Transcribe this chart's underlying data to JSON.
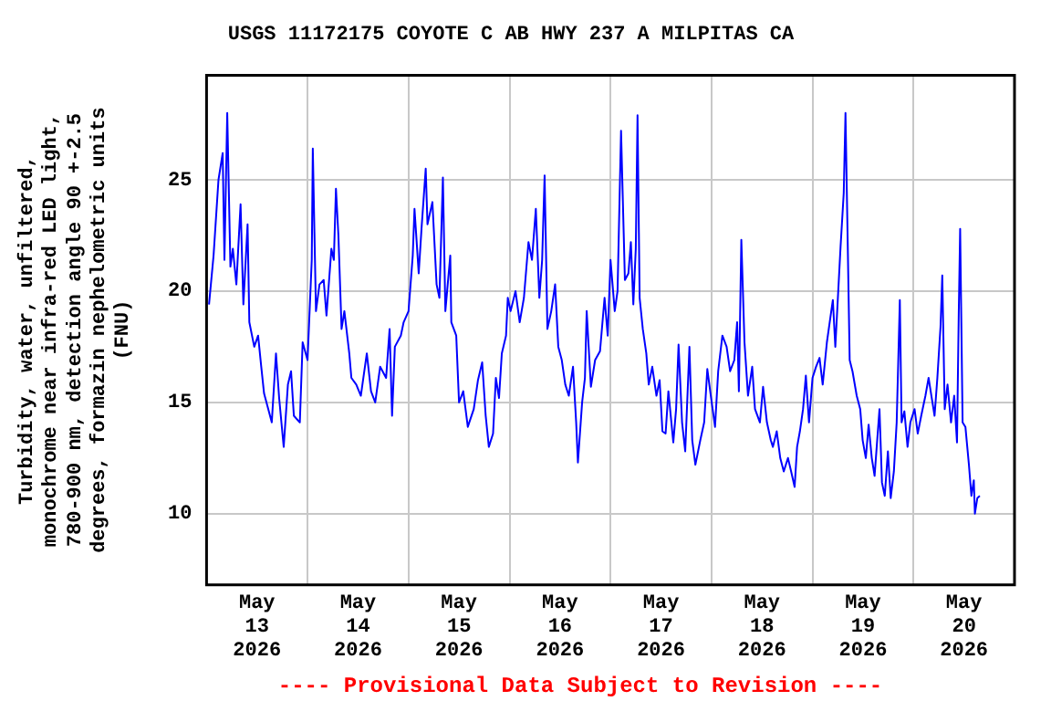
{
  "chart_data": {
    "type": "line",
    "title": "USGS 11172175 COYOTE C AB HWY 237 A MILPITAS CA",
    "ylabel": "Turbidity, water, unfiltered, monochrome near infra-red LED light, 780-900 nm, detection angle 90 +-2.5 degrees, formazin nephelometric units (FNU)",
    "annotations": [
      "---- Provisional Data Subject to Revision ----"
    ],
    "x": [
      "2026-05-13T00:35",
      "2026-05-13T01:40",
      "2026-05-13T02:50",
      "2026-05-13T03:50",
      "2026-05-13T04:15",
      "2026-05-13T04:55",
      "2026-05-13T05:40",
      "2026-05-13T06:15",
      "2026-05-13T07:05",
      "2026-05-13T08:05",
      "2026-05-13T08:45",
      "2026-05-13T09:45",
      "2026-05-13T10:10",
      "2026-05-13T11:20",
      "2026-05-13T12:15",
      "2026-05-13T13:00",
      "2026-05-13T13:40",
      "2026-05-13T14:40",
      "2026-05-13T15:30",
      "2026-05-13T16:30",
      "2026-05-13T17:15",
      "2026-05-13T18:20",
      "2026-05-13T19:20",
      "2026-05-13T20:05",
      "2026-05-13T20:45",
      "2026-05-13T22:10",
      "2026-05-13T22:50",
      "2026-05-14T00:00",
      "2026-05-14T01:00",
      "2026-05-14T01:15",
      "2026-05-14T02:00",
      "2026-05-14T02:50",
      "2026-05-14T03:50",
      "2026-05-14T04:30",
      "2026-05-14T05:40",
      "2026-05-14T06:15",
      "2026-05-14T06:45",
      "2026-05-14T07:20",
      "2026-05-14T08:05",
      "2026-05-14T08:45",
      "2026-05-14T09:55",
      "2026-05-14T10:25",
      "2026-05-14T11:35",
      "2026-05-14T12:40",
      "2026-05-14T14:05",
      "2026-05-14T15:05",
      "2026-05-14T16:05",
      "2026-05-14T17:15",
      "2026-05-14T18:40",
      "2026-05-14T19:30",
      "2026-05-14T20:05",
      "2026-05-14T20:45",
      "2026-05-14T22:10",
      "2026-05-14T22:50",
      "2026-05-15T00:00",
      "2026-05-15T01:00",
      "2026-05-15T01:25",
      "2026-05-15T02:25",
      "2026-05-15T03:05",
      "2026-05-15T04:05",
      "2026-05-15T04:30",
      "2026-05-15T05:40",
      "2026-05-15T06:40",
      "2026-05-15T07:20",
      "2026-05-15T08:10",
      "2026-05-15T08:45",
      "2026-05-15T09:55",
      "2026-05-15T10:10",
      "2026-05-15T11:20",
      "2026-05-15T12:00",
      "2026-05-15T13:00",
      "2026-05-15T14:05",
      "2026-05-15T15:30",
      "2026-05-15T16:30",
      "2026-05-15T17:30",
      "2026-05-15T18:20",
      "2026-05-15T19:05",
      "2026-05-15T20:05",
      "2026-05-15T20:45",
      "2026-05-15T21:30",
      "2026-05-15T22:10",
      "2026-05-15T23:10",
      "2026-05-15T23:35",
      "2026-05-16T00:15",
      "2026-05-16T01:25",
      "2026-05-16T02:25",
      "2026-05-16T03:25",
      "2026-05-16T04:30",
      "2026-05-16T05:20",
      "2026-05-16T06:15",
      "2026-05-16T07:05",
      "2026-05-16T07:45",
      "2026-05-16T08:20",
      "2026-05-16T09:00",
      "2026-05-16T09:55",
      "2026-05-16T10:50",
      "2026-05-16T11:35",
      "2026-05-16T12:25",
      "2026-05-16T13:15",
      "2026-05-16T14:05",
      "2026-05-16T15:05",
      "2026-05-16T15:50",
      "2026-05-16T16:15",
      "2026-05-16T17:15",
      "2026-05-16T17:55",
      "2026-05-16T18:20",
      "2026-05-16T19:20",
      "2026-05-16T20:20",
      "2026-05-16T21:30",
      "2026-05-16T22:35",
      "2026-05-16T23:20",
      "2026-05-17T00:00",
      "2026-05-17T01:00",
      "2026-05-17T01:40",
      "2026-05-17T02:30",
      "2026-05-17T03:25",
      "2026-05-17T04:15",
      "2026-05-17T04:50",
      "2026-05-17T05:25",
      "2026-05-17T06:00",
      "2026-05-17T06:25",
      "2026-05-17T06:55",
      "2026-05-17T07:40",
      "2026-05-17T08:30",
      "2026-05-17T09:05",
      "2026-05-17T09:55",
      "2026-05-17T10:55",
      "2026-05-17T11:40",
      "2026-05-17T12:20",
      "2026-05-17T13:05",
      "2026-05-17T13:45",
      "2026-05-17T14:55",
      "2026-05-17T15:35",
      "2026-05-17T16:10",
      "2026-05-17T17:00",
      "2026-05-17T17:45",
      "2026-05-17T18:45",
      "2026-05-17T19:25",
      "2026-05-17T20:10",
      "2026-05-17T21:20",
      "2026-05-17T22:15",
      "2026-05-17T23:00",
      "2026-05-17T23:50",
      "2026-05-18T00:50",
      "2026-05-18T01:35",
      "2026-05-18T02:35",
      "2026-05-18T03:35",
      "2026-05-18T04:25",
      "2026-05-18T05:25",
      "2026-05-18T06:05",
      "2026-05-18T06:30",
      "2026-05-18T07:05",
      "2026-05-18T07:50",
      "2026-05-18T08:40",
      "2026-05-18T09:40",
      "2026-05-18T10:20",
      "2026-05-18T11:30",
      "2026-05-18T12:15",
      "2026-05-18T13:10",
      "2026-05-18T14:05",
      "2026-05-18T14:35",
      "2026-05-18T15:30",
      "2026-05-18T16:20",
      "2026-05-18T17:10",
      "2026-05-18T18:10",
      "2026-05-18T18:55",
      "2026-05-18T19:45",
      "2026-05-18T20:20",
      "2026-05-18T21:00",
      "2026-05-18T21:45",
      "2026-05-18T22:25",
      "2026-05-18T23:10",
      "2026-05-19T00:00",
      "2026-05-19T00:50",
      "2026-05-19T01:40",
      "2026-05-19T02:25",
      "2026-05-19T03:25",
      "2026-05-19T04:05",
      "2026-05-19T04:50",
      "2026-05-19T05:25",
      "2026-05-19T06:15",
      "2026-05-19T06:40",
      "2026-05-19T07:25",
      "2026-05-19T07:50",
      "2026-05-19T08:20",
      "2026-05-19T08:50",
      "2026-05-19T09:30",
      "2026-05-19T10:30",
      "2026-05-19T11:20",
      "2026-05-19T11:55",
      "2026-05-19T12:40",
      "2026-05-19T13:20",
      "2026-05-19T14:05",
      "2026-05-19T14:45",
      "2026-05-19T15:55",
      "2026-05-19T16:30",
      "2026-05-19T17:10",
      "2026-05-19T17:55",
      "2026-05-19T18:35",
      "2026-05-19T19:20",
      "2026-05-19T20:00",
      "2026-05-19T20:45",
      "2026-05-19T21:10",
      "2026-05-19T21:50",
      "2026-05-19T22:35",
      "2026-05-19T23:15",
      "2026-05-20T00:15",
      "2026-05-20T01:00",
      "2026-05-20T01:50",
      "2026-05-20T02:50",
      "2026-05-20T03:35",
      "2026-05-20T04:15",
      "2026-05-20T05:00",
      "2026-05-20T05:40",
      "2026-05-20T06:25",
      "2026-05-20T06:50",
      "2026-05-20T07:25",
      "2026-05-20T08:05",
      "2026-05-20T08:55",
      "2026-05-20T09:40",
      "2026-05-20T10:20",
      "2026-05-20T10:45",
      "2026-05-20T11:05",
      "2026-05-20T11:40",
      "2026-05-20T12:20",
      "2026-05-20T13:10",
      "2026-05-20T13:45",
      "2026-05-20T14:20",
      "2026-05-20T14:35",
      "2026-05-20T15:10",
      "2026-05-20T15:45"
    ],
    "series": [
      {
        "color": "#0000ff",
        "values": [
          19.4,
          21.6,
          25,
          26.2,
          21.4,
          28,
          21.1,
          21.9,
          20.3,
          23.9,
          19.4,
          23,
          18.6,
          17.5,
          18,
          16.6,
          15.4,
          14.7,
          14.1,
          17.2,
          15.2,
          13,
          15.8,
          16.4,
          14.4,
          14.1,
          17.7,
          16.9,
          21.4,
          26.4,
          19.1,
          20.3,
          20.5,
          18.9,
          21.9,
          21.4,
          24.6,
          22.5,
          18.3,
          19.1,
          17.2,
          16.1,
          15.8,
          15.3,
          17.2,
          15.5,
          15,
          16.6,
          16.1,
          18.3,
          14.4,
          17.5,
          18,
          18.6,
          19.1,
          21.6,
          23.7,
          20.8,
          22.8,
          25.5,
          23,
          24,
          20.3,
          19.7,
          25.1,
          19.1,
          21.6,
          18.6,
          18,
          15,
          15.5,
          13.9,
          14.7,
          16,
          16.8,
          14.4,
          13,
          13.6,
          16.1,
          15.2,
          17.2,
          18,
          19.7,
          19.1,
          20,
          18.6,
          19.7,
          22.2,
          21.4,
          23.7,
          19.7,
          21.4,
          25.2,
          18.3,
          19.1,
          20.3,
          17.5,
          16.9,
          15.8,
          15.3,
          16.6,
          14.1,
          12.3,
          15,
          16.1,
          19.1,
          15.7,
          16.9,
          17.3,
          19.7,
          18,
          21.4,
          19.1,
          20,
          27.2,
          20.5,
          20.8,
          22.2,
          19.4,
          21.9,
          27.9,
          19.7,
          18.3,
          17.2,
          15.8,
          16.6,
          15.3,
          16,
          13.7,
          13.6,
          15.5,
          13.2,
          14.7,
          17.6,
          14.1,
          12.8,
          17.5,
          13.3,
          12.2,
          13.3,
          14.1,
          16.5,
          15.3,
          13.9,
          16.4,
          18,
          17.5,
          16.4,
          16.9,
          18.6,
          15.5,
          22.3,
          17.7,
          15.3,
          16.6,
          14.7,
          14.1,
          15.7,
          14.1,
          13.3,
          13,
          13.7,
          12.5,
          11.9,
          12.5,
          11.9,
          11.2,
          13,
          13.7,
          14.7,
          16.2,
          14.1,
          16.1,
          16.6,
          17,
          15.8,
          17.7,
          18.6,
          19.6,
          17.5,
          20.5,
          22,
          24.4,
          28,
          22.5,
          16.9,
          16.4,
          15.3,
          14.7,
          13.3,
          12.5,
          14,
          12.5,
          11.7,
          14.7,
          11.4,
          10.8,
          12.8,
          10.7,
          11.9,
          14.1,
          19.6,
          14.1,
          14.6,
          13,
          14.1,
          14.7,
          13.6,
          14.4,
          15.3,
          16.1,
          15.3,
          14.4,
          16.1,
          18.4,
          20.7,
          14.7,
          15.8,
          14.1,
          15.3,
          13.2,
          19,
          22.8,
          14.1,
          13.9,
          12.2,
          10.8,
          11.5,
          10,
          10.7,
          10.8
        ]
      }
    ],
    "xlim": [
      "2026-05-13T00:00",
      "2026-05-21T00:00"
    ],
    "xticks": [
      {
        "value": "2026-05-13T12:00",
        "label": "May 13 2026"
      },
      {
        "value": "2026-05-14T00:00",
        "label": null
      },
      {
        "value": "2026-05-14T12:00",
        "label": "May 14 2026"
      },
      {
        "value": "2026-05-15T00:00",
        "label": null
      },
      {
        "value": "2026-05-15T12:00",
        "label": "May 15 2026"
      },
      {
        "value": "2026-05-16T00:00",
        "label": null
      },
      {
        "value": "2026-05-16T12:00",
        "label": "May 16 2026"
      },
      {
        "value": "2026-05-17T00:00",
        "label": null
      },
      {
        "value": "2026-05-17T12:00",
        "label": "May 17 2026"
      },
      {
        "value": "2026-05-18T00:00",
        "label": null
      },
      {
        "value": "2026-05-18T12:00",
        "label": "May 18 2026"
      },
      {
        "value": "2026-05-19T00:00",
        "label": null
      },
      {
        "value": "2026-05-19T12:00",
        "label": "May 19 2026"
      },
      {
        "value": "2026-05-20T00:00",
        "label": null
      },
      {
        "value": "2026-05-20T12:00",
        "label": "May 20 2026"
      }
    ],
    "ylim": [
      6.8,
      29.7
    ],
    "yticks": [
      10,
      15,
      20,
      25
    ],
    "grid": true,
    "legend": false,
    "marker": "none",
    "line_style": "solid"
  }
}
